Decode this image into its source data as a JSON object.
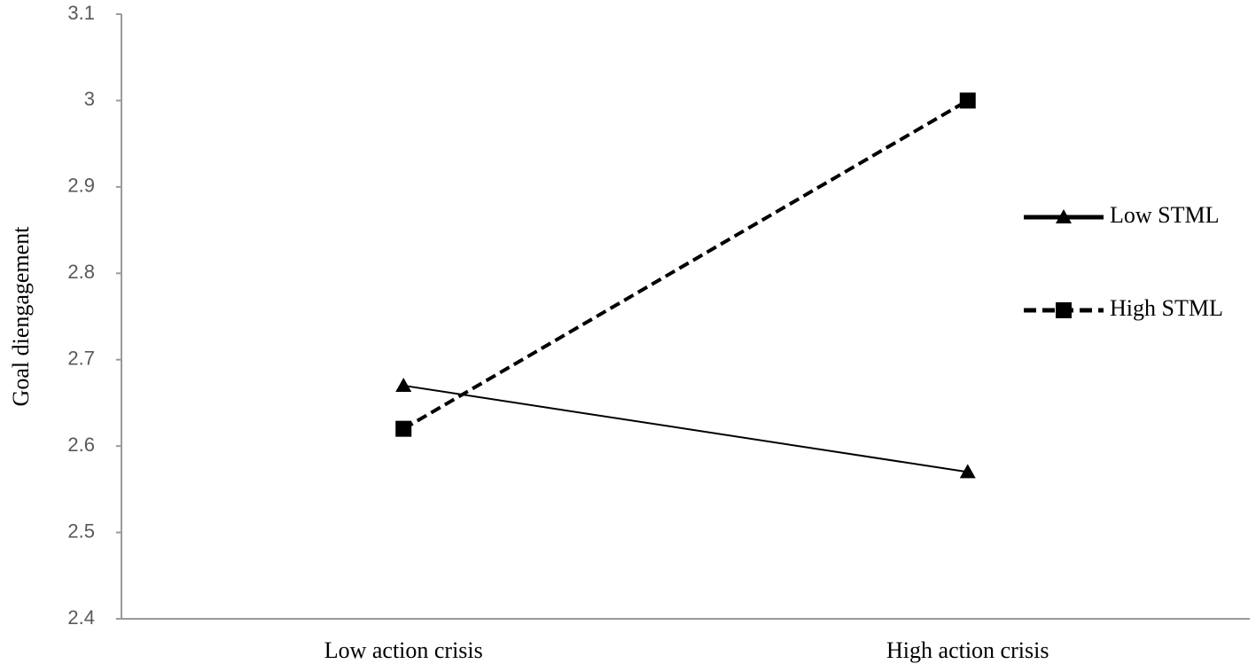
{
  "chart_data": {
    "type": "line",
    "y_label": "Goal diengagement",
    "categories": [
      "Low action crisis",
      "High action crisis"
    ],
    "series": [
      {
        "name": "Low STML",
        "color": "#000000",
        "marker": "triangle",
        "dashed": false,
        "values": [
          2.67,
          2.57
        ]
      },
      {
        "name": "High STML",
        "color": "#000000",
        "marker": "square",
        "dashed": true,
        "values": [
          2.62,
          3.0
        ]
      }
    ],
    "ylim": [
      2.4,
      3.1
    ],
    "yticks": [
      2.4,
      2.5,
      2.6,
      2.7,
      2.8,
      2.9,
      3,
      3.1
    ],
    "grid": false,
    "legend": "right"
  }
}
